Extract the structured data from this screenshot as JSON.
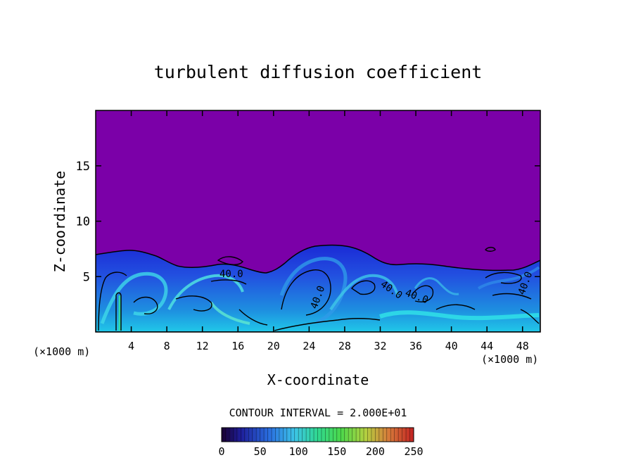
{
  "chart_data": {
    "type": "heatmap",
    "title": "turbulent diffusion coefficient",
    "xlabel": "X-coordinate",
    "ylabel": "Z-coordinate",
    "x_unit_left": "(×1000 m)",
    "x_unit_right": "(×1000 m)",
    "xlim": [
      0,
      50
    ],
    "ylim": [
      0,
      20
    ],
    "xticks": [
      "4",
      "8",
      "12",
      "16",
      "20",
      "24",
      "28",
      "32",
      "36",
      "40",
      "44",
      "48"
    ],
    "yticks": [
      "5",
      "10",
      "15"
    ],
    "contour_interval_text": "CONTOUR INTERVAL = 2.000E+01",
    "contour_labels": [
      "40.0",
      "40.0",
      "40.0",
      "40.0",
      "40.0"
    ],
    "colorbar": {
      "min": 0,
      "max": 250,
      "ticks": [
        "0",
        "50",
        "100",
        "150",
        "200",
        "250"
      ]
    },
    "background_color": "#7b00a8",
    "turbulent_layer_top_km": 7
  }
}
